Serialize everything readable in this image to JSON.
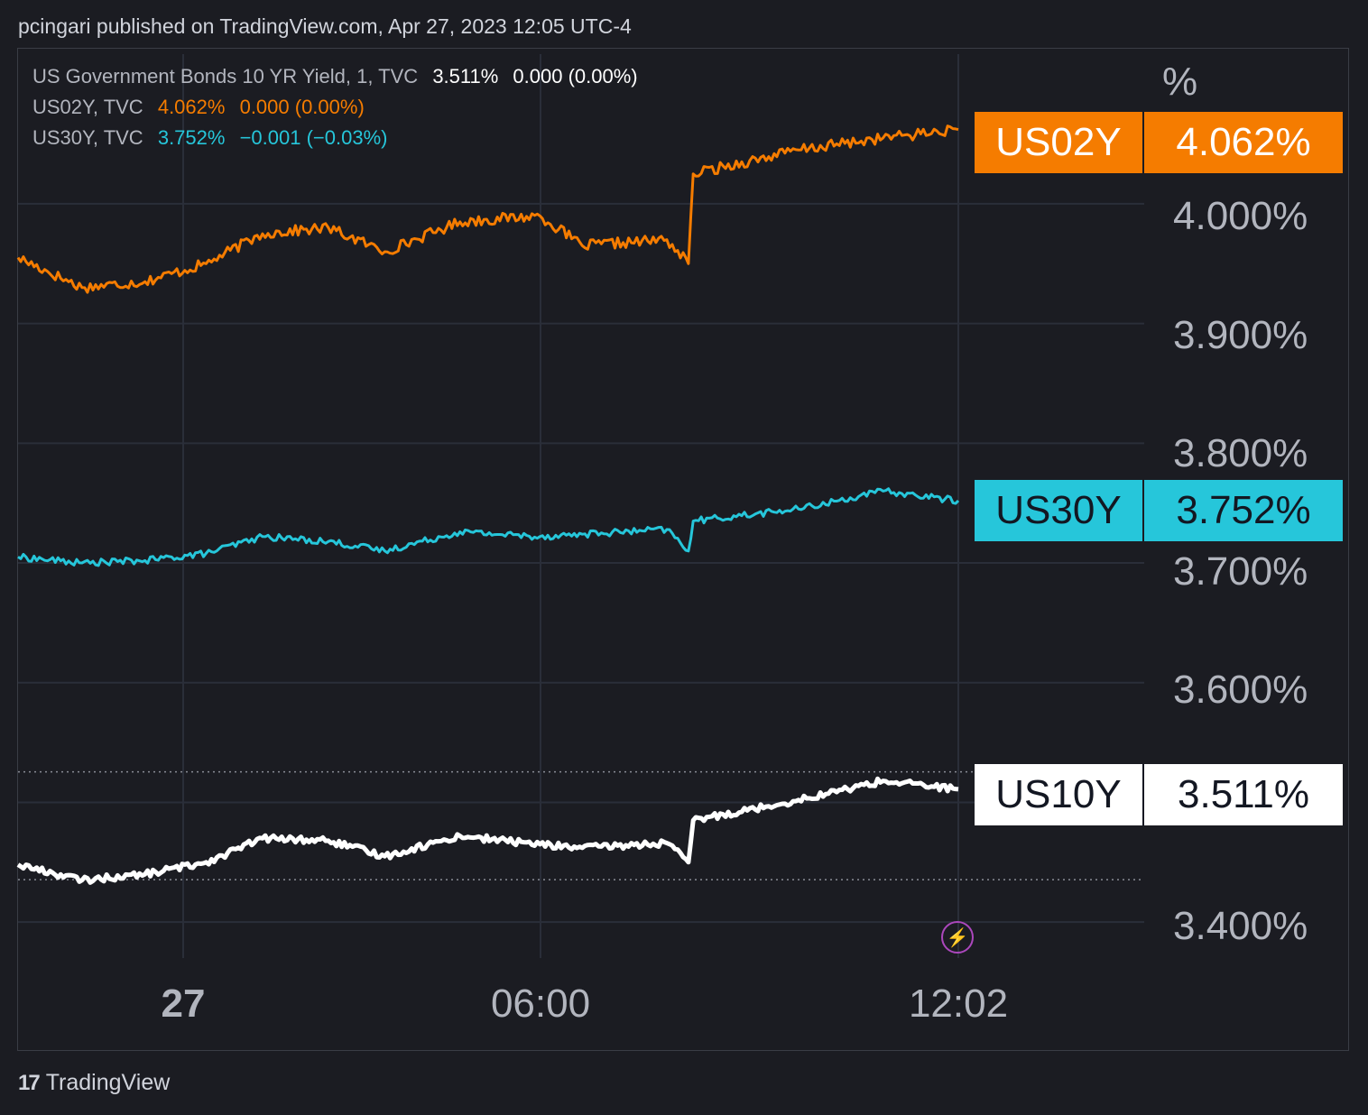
{
  "header": {
    "attribution": "pcingari published on TradingView.com, Apr 27, 2023 12:05 UTC-4"
  },
  "legend": {
    "row1_name": "US Government Bonds 10 YR Yield, 1, TVC",
    "row1_value": "3.511%",
    "row1_change": "0.000 (0.00%)",
    "row2_name": "US02Y, TVC",
    "row2_value": "4.062%",
    "row2_change": "0.000 (0.00%)",
    "row3_name": "US30Y, TVC",
    "row3_value": "3.752%",
    "row3_change": "−0.001 (−0.03%)"
  },
  "axis": {
    "unit": "%",
    "y_ticks": [
      "4.000%",
      "3.900%",
      "3.800%",
      "3.700%",
      "3.600%",
      "3.400%"
    ],
    "x_ticks": [
      "27",
      "06:00",
      "12:02"
    ]
  },
  "tags": {
    "us02y": {
      "symbol": "US02Y",
      "value": "4.062%"
    },
    "us30y": {
      "symbol": "US30Y",
      "value": "3.752%"
    },
    "us10y": {
      "symbol": "US10Y",
      "value": "3.511%"
    }
  },
  "footer": {
    "logo_mark": "17",
    "brand": "TradingView"
  },
  "colors": {
    "us02y": "#f57c00",
    "us30y": "#26c6da",
    "us10y": "#ffffff",
    "grid": "#2a2e39",
    "background": "#1b1c22"
  },
  "chart_data": {
    "type": "line",
    "ylim": [
      3.37,
      4.125
    ],
    "x_ticks": [
      "27",
      "06:00",
      "12:02"
    ],
    "series": [
      {
        "name": "US02Y",
        "color": "#f57c00",
        "x": [
          "Apr 26 22:00",
          "Apr 26 23:00",
          "Apr 27 00:00",
          "Apr 27 01:00",
          "Apr 27 02:00",
          "Apr 27 03:00",
          "Apr 27 04:00",
          "Apr 27 05:00",
          "Apr 27 06:00",
          "Apr 27 07:00",
          "Apr 27 08:00",
          "Apr 27 08:30",
          "Apr 27 09:00",
          "Apr 27 10:00",
          "Apr 27 11:00",
          "Apr 27 12:02"
        ],
        "values": [
          3.955,
          3.93,
          3.935,
          3.95,
          3.975,
          3.98,
          3.96,
          3.985,
          3.99,
          3.965,
          3.97,
          3.95,
          4.025,
          4.045,
          4.055,
          4.062
        ]
      },
      {
        "name": "US30Y",
        "color": "#26c6da",
        "x": [
          "Apr 26 22:00",
          "Apr 26 23:00",
          "Apr 27 00:00",
          "Apr 27 01:00",
          "Apr 27 02:00",
          "Apr 27 03:00",
          "Apr 27 04:00",
          "Apr 27 05:00",
          "Apr 27 06:00",
          "Apr 27 07:00",
          "Apr 27 08:00",
          "Apr 27 08:30",
          "Apr 27 09:00",
          "Apr 27 10:00",
          "Apr 27 11:00",
          "Apr 27 12:02"
        ],
        "values": [
          3.705,
          3.7,
          3.702,
          3.708,
          3.722,
          3.718,
          3.71,
          3.726,
          3.722,
          3.724,
          3.728,
          3.71,
          3.735,
          3.745,
          3.76,
          3.752
        ]
      },
      {
        "name": "US10Y",
        "color": "#ffffff",
        "x": [
          "Apr 26 22:00",
          "Apr 26 23:00",
          "Apr 27 00:00",
          "Apr 27 01:00",
          "Apr 27 02:00",
          "Apr 27 03:00",
          "Apr 27 04:00",
          "Apr 27 05:00",
          "Apr 27 06:00",
          "Apr 27 07:00",
          "Apr 27 08:00",
          "Apr 27 08:30",
          "Apr 27 09:00",
          "Apr 27 10:00",
          "Apr 27 11:00",
          "Apr 27 12:02"
        ],
        "values": [
          3.448,
          3.435,
          3.44,
          3.45,
          3.47,
          3.468,
          3.455,
          3.472,
          3.465,
          3.462,
          3.466,
          3.45,
          3.485,
          3.502,
          3.518,
          3.511
        ]
      }
    ]
  }
}
